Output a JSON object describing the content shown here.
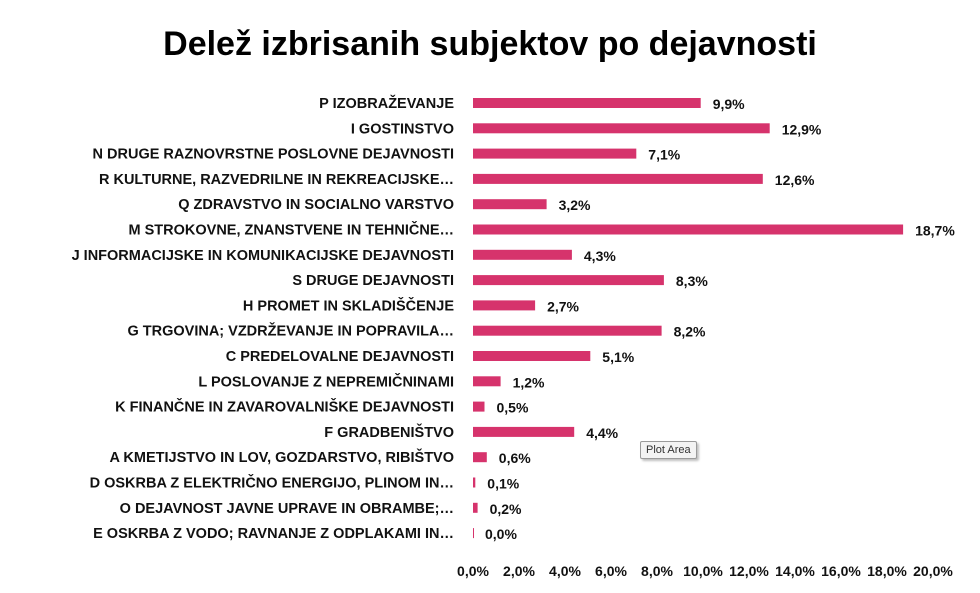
{
  "chart_data": {
    "type": "bar",
    "orientation": "horizontal",
    "title": "Delež izbrisanih subjektov po dejavnosti",
    "xlabel": "",
    "ylabel": "",
    "xlim": [
      0,
      20
    ],
    "color": "#d6336c",
    "categories": [
      "P IZOBRAŽEVANJE",
      "I GOSTINSTVO",
      "N DRUGE RAZNOVRSTNE POSLOVNE DEJAVNOSTI",
      "R KULTURNE, RAZVEDRILNE IN REKREACIJSKE…",
      "Q ZDRAVSTVO IN SOCIALNO VARSTVO",
      "M STROKOVNE, ZNANSTVENE IN TEHNIČNE…",
      "J INFORMACIJSKE IN KOMUNIKACIJSKE DEJAVNOSTI",
      "S DRUGE DEJAVNOSTI",
      "H PROMET IN SKLADIŠČENJE",
      "G TRGOVINA; VZDRŽEVANJE IN POPRAVILA…",
      "C PREDELOVALNE DEJAVNOSTI",
      "L POSLOVANJE Z NEPREMIČNINAMI",
      "K FINANČNE IN ZAVAROVALNIŠKE DEJAVNOSTI",
      "F GRADBENIŠTVO",
      "A KMETIJSTVO IN LOV, GOZDARSTVO, RIBIŠTVO",
      "D OSKRBA Z ELEKTRIČNO ENERGIJO, PLINOM IN…",
      "O DEJAVNOST JAVNE UPRAVE IN OBRAMBE;…",
      "E OSKRBA Z VODO; RAVNANJE Z ODPLAKAMI IN…"
    ],
    "values": [
      9.9,
      12.9,
      7.1,
      12.6,
      3.2,
      18.7,
      4.3,
      8.3,
      2.7,
      8.2,
      5.1,
      1.2,
      0.5,
      4.4,
      0.6,
      0.1,
      0.2,
      0.0
    ],
    "value_labels": [
      "9,9%",
      "12,9%",
      "7,1%",
      "12,6%",
      "3,2%",
      "18,7%",
      "4,3%",
      "8,3%",
      "2,7%",
      "8,2%",
      "5,1%",
      "1,2%",
      "0,5%",
      "4,4%",
      "0,6%",
      "0,1%",
      "0,2%",
      "0,0%"
    ],
    "x_ticks": [
      0,
      2,
      4,
      6,
      8,
      10,
      12,
      14,
      16,
      18,
      20
    ],
    "x_tick_labels": [
      "0,0%",
      "2,0%",
      "4,0%",
      "6,0%",
      "8,0%",
      "10,0%",
      "12,0%",
      "14,0%",
      "16,0%",
      "18,0%",
      "20,0%"
    ],
    "grid": false,
    "legend": "none"
  },
  "tooltip": {
    "text": "Plot Area"
  }
}
